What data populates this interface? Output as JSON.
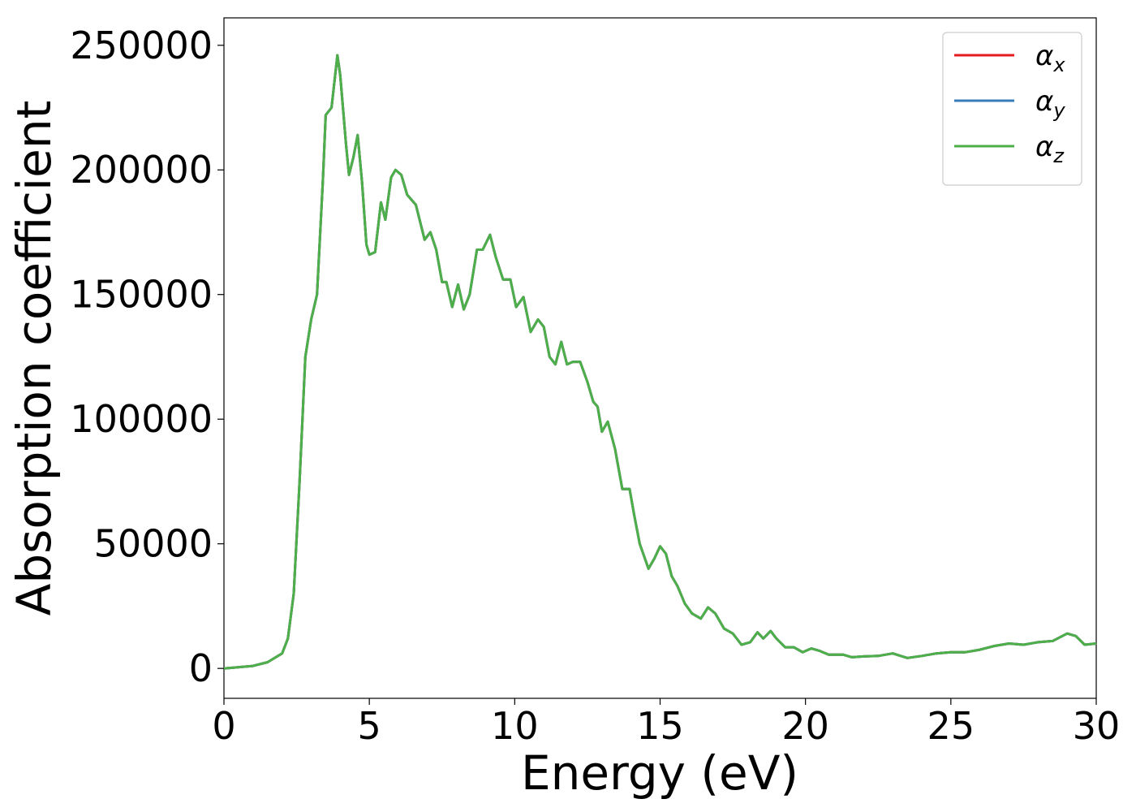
{
  "chart_data": {
    "type": "line",
    "xlabel": "Energy (eV)",
    "ylabel": "Absorption coefficient",
    "x": [
      0,
      1,
      1.5,
      2,
      2.2,
      2.4,
      2.6,
      2.8,
      3.0,
      3.2,
      3.4,
      3.5,
      3.7,
      3.9,
      4.0,
      4.2,
      4.3,
      4.45,
      4.6,
      4.75,
      4.9,
      5.0,
      5.2,
      5.4,
      5.55,
      5.75,
      5.9,
      6.1,
      6.3,
      6.6,
      6.9,
      7.1,
      7.3,
      7.5,
      7.65,
      7.85,
      8.05,
      8.25,
      8.45,
      8.7,
      8.9,
      9.15,
      9.35,
      9.6,
      9.85,
      10.05,
      10.3,
      10.55,
      10.8,
      11.0,
      11.2,
      11.4,
      11.6,
      11.8,
      12.0,
      12.25,
      12.5,
      12.7,
      12.85,
      13.0,
      13.2,
      13.45,
      13.7,
      13.95,
      14.1,
      14.3,
      14.6,
      14.8,
      15.0,
      15.2,
      15.4,
      15.6,
      15.85,
      16.1,
      16.4,
      16.65,
      16.9,
      17.2,
      17.5,
      17.8,
      18.1,
      18.35,
      18.55,
      18.8,
      19.0,
      19.3,
      19.6,
      19.9,
      20.2,
      20.5,
      20.8,
      21.3,
      21.6,
      22.0,
      22.5,
      23.0,
      23.5,
      24.0,
      24.5,
      25.0,
      25.5,
      26.0,
      26.5,
      27.0,
      27.5,
      28.0,
      28.5,
      29.0,
      29.3,
      29.6,
      30
    ],
    "series": [
      {
        "name": "αx",
        "color": "#e41a1c",
        "values": [
          0,
          1000,
          2500,
          6000,
          12000,
          30000,
          75000,
          125000,
          140000,
          150000,
          195000,
          222000,
          225000,
          246000,
          238000,
          210000,
          198000,
          205000,
          214000,
          195000,
          170000,
          166000,
          167000,
          187000,
          180000,
          197000,
          200000,
          198000,
          190000,
          186000,
          172000,
          175000,
          168000,
          155000,
          155000,
          145000,
          154000,
          144000,
          150000,
          168000,
          168000,
          174000,
          165000,
          156000,
          156000,
          145000,
          149000,
          135000,
          140000,
          137000,
          125000,
          122000,
          131000,
          122000,
          123000,
          123000,
          115000,
          107000,
          105000,
          95000,
          99000,
          88000,
          72000,
          72000,
          62000,
          50000,
          40000,
          44000,
          49000,
          46000,
          37000,
          33000,
          26000,
          22000,
          20000,
          24500,
          22000,
          16000,
          14000,
          9500,
          10500,
          14500,
          12000,
          15000,
          12000,
          8500,
          8500,
          6500,
          8000,
          7000,
          5500,
          5500,
          4500,
          4800,
          5000,
          6000,
          4200,
          5000,
          6000,
          6500,
          6500,
          7500,
          9000,
          10000,
          9500,
          10500,
          11000,
          14000,
          13000,
          9500,
          10000
        ]
      },
      {
        "name": "αy",
        "color": "#377eb8",
        "values": [
          0,
          1000,
          2500,
          6000,
          12000,
          30000,
          75000,
          125000,
          140000,
          150000,
          195000,
          222000,
          225000,
          246000,
          238000,
          210000,
          198000,
          205000,
          214000,
          195000,
          170000,
          166000,
          167000,
          187000,
          180000,
          197000,
          200000,
          198000,
          190000,
          186000,
          172000,
          175000,
          168000,
          155000,
          155000,
          145000,
          154000,
          144000,
          150000,
          168000,
          168000,
          174000,
          165000,
          156000,
          156000,
          145000,
          149000,
          135000,
          140000,
          137000,
          125000,
          122000,
          131000,
          122000,
          123000,
          123000,
          115000,
          107000,
          105000,
          95000,
          99000,
          88000,
          72000,
          72000,
          62000,
          50000,
          40000,
          44000,
          49000,
          46000,
          37000,
          33000,
          26000,
          22000,
          20000,
          24500,
          22000,
          16000,
          14000,
          9500,
          10500,
          14500,
          12000,
          15000,
          12000,
          8500,
          8500,
          6500,
          8000,
          7000,
          5500,
          5500,
          4500,
          4800,
          5000,
          6000,
          4200,
          5000,
          6000,
          6500,
          6500,
          7500,
          9000,
          10000,
          9500,
          10500,
          11000,
          14000,
          13000,
          9500,
          10000
        ]
      },
      {
        "name": "αz",
        "color": "#4daf4a",
        "values": [
          0,
          1000,
          2500,
          6000,
          12000,
          30000,
          75000,
          125000,
          140000,
          150000,
          195000,
          222000,
          225000,
          246000,
          238000,
          210000,
          198000,
          205000,
          214000,
          195000,
          170000,
          166000,
          167000,
          187000,
          180000,
          197000,
          200000,
          198000,
          190000,
          186000,
          172000,
          175000,
          168000,
          155000,
          155000,
          145000,
          154000,
          144000,
          150000,
          168000,
          168000,
          174000,
          165000,
          156000,
          156000,
          145000,
          149000,
          135000,
          140000,
          137000,
          125000,
          122000,
          131000,
          122000,
          123000,
          123000,
          115000,
          107000,
          105000,
          95000,
          99000,
          88000,
          72000,
          72000,
          62000,
          50000,
          40000,
          44000,
          49000,
          46000,
          37000,
          33000,
          26000,
          22000,
          20000,
          24500,
          22000,
          16000,
          14000,
          9500,
          10500,
          14500,
          12000,
          15000,
          12000,
          8500,
          8500,
          6500,
          8000,
          7000,
          5500,
          5500,
          4500,
          4800,
          5000,
          6000,
          4200,
          5000,
          6000,
          6500,
          6500,
          7500,
          9000,
          10000,
          9500,
          10500,
          11000,
          14000,
          13000,
          9500,
          10000
        ]
      }
    ],
    "xlim": [
      0,
      30
    ],
    "xticks": [
      0,
      5,
      10,
      15,
      20,
      25,
      30
    ],
    "ylim": [
      -12000,
      261000
    ],
    "yticks": [
      0,
      50000,
      100000,
      150000,
      200000,
      250000
    ],
    "legend": "upper right"
  }
}
